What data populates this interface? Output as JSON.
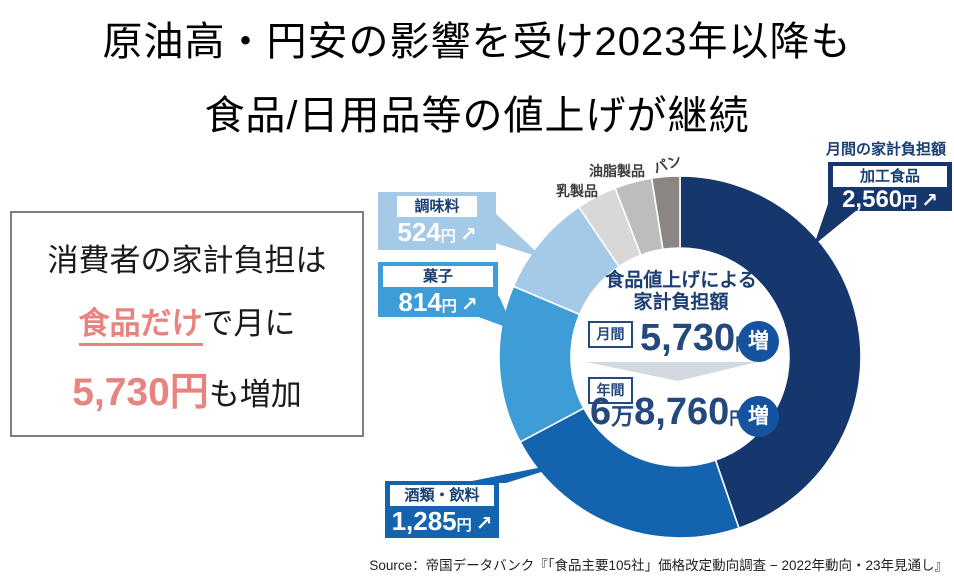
{
  "title": {
    "line1": "原油高・円安の影響を受け2023年以降も",
    "line2": "食品/日用品等の値上げが継続"
  },
  "highlight_box": {
    "line1": "消費者の家計負担は",
    "line2_em": "食品だけ",
    "line2_rest": "で月に",
    "line3_em": "5,730円",
    "line3_rest": "も増加"
  },
  "chart_data": {
    "type": "pie",
    "subtype": "donut",
    "title": "食品値上げによる家計負担額",
    "unit": "円/月",
    "total_monthly_yen": "5,730",
    "total_yearly_yen": "6万8,760",
    "legend_position": "callouts-around-donut",
    "segments": [
      {
        "key": "processed-food",
        "label": "加工食品",
        "value_yen": 2560,
        "display": "2,560円",
        "angle_deg": 161,
        "color": "#16376D"
      },
      {
        "key": "alcohol-beverages",
        "label": "酒類・飲料",
        "value_yen": 1285,
        "display": "1,285円",
        "angle_deg": 81,
        "color": "#1463AF"
      },
      {
        "key": "sweets",
        "label": "菓子",
        "value_yen": 814,
        "display": "814円",
        "angle_deg": 51,
        "color": "#3E9CD6"
      },
      {
        "key": "seasoning",
        "label": "調味料",
        "value_yen": 524,
        "display": "524円",
        "angle_deg": 33,
        "color": "#A5CAE7"
      },
      {
        "key": "dairy",
        "label": "乳製品",
        "value_yen": null,
        "display": "",
        "angle_deg": 13,
        "color": "#D8D8D8"
      },
      {
        "key": "oils",
        "label": "油脂製品",
        "value_yen": null,
        "display": "",
        "angle_deg": 12,
        "color": "#BEBDBD"
      },
      {
        "key": "bread",
        "label": "パン",
        "value_yen": null,
        "display": "",
        "angle_deg": 9,
        "color": "#8B8683"
      }
    ]
  },
  "callouts": {
    "header": "月間の家計負担額",
    "seasoning": {
      "label": "調味料",
      "value": "524",
      "unit": "円",
      "arrow": "↗"
    },
    "sweets": {
      "label": "菓子",
      "value": "814",
      "unit": "円",
      "arrow": "↗"
    },
    "alcohol": {
      "label": "酒類・飲料",
      "value": "1,285",
      "unit": "円",
      "arrow": "↗"
    },
    "processed": {
      "label": "加工食品",
      "value": "2,560",
      "unit": "円",
      "arrow": "↗"
    }
  },
  "center": {
    "title_line1": "食品値上げによる",
    "title_line2": "家計負担額",
    "monthly_label": "月間",
    "monthly_value": "5,730",
    "monthly_unit": "円",
    "yearly_label": "年間",
    "yearly_big1": "6",
    "yearly_small1": "万",
    "yearly_big2": "8,760",
    "yearly_unit": "円",
    "badge": "増"
  },
  "colors": {
    "accent_salmon": "#E8837F",
    "navy_text": "#1B3F73",
    "badge_blue": "#1553A1",
    "divider_gray": "#D4D9DF"
  },
  "source": "Source：帝国データバンク『「食品主要105社」価格改定動向調査 − 2022年動向・23年見通し』"
}
